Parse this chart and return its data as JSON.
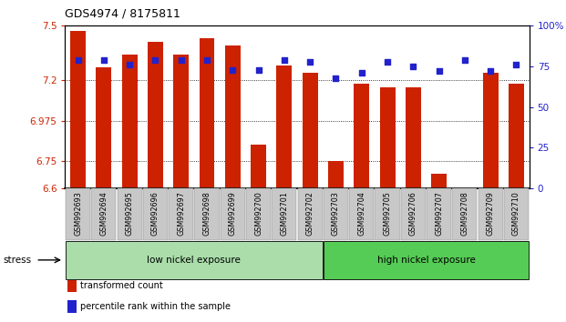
{
  "title": "GDS4974 / 8175811",
  "samples": [
    "GSM992693",
    "GSM992694",
    "GSM992695",
    "GSM992696",
    "GSM992697",
    "GSM992698",
    "GSM992699",
    "GSM992700",
    "GSM992701",
    "GSM992702",
    "GSM992703",
    "GSM992704",
    "GSM992705",
    "GSM992706",
    "GSM992707",
    "GSM992708",
    "GSM992709",
    "GSM992710"
  ],
  "bar_values": [
    7.47,
    7.27,
    7.34,
    7.41,
    7.34,
    7.43,
    7.39,
    6.84,
    7.28,
    7.24,
    6.75,
    7.18,
    7.16,
    7.16,
    6.68,
    6.6,
    7.24,
    7.18
  ],
  "dot_values": [
    79,
    79,
    76,
    79,
    79,
    79,
    73,
    73,
    79,
    78,
    68,
    71,
    78,
    75,
    72,
    79,
    72,
    76
  ],
  "ylim_left": [
    6.6,
    7.5
  ],
  "ylim_right": [
    0,
    100
  ],
  "yticks_left": [
    6.6,
    6.75,
    6.975,
    7.2,
    7.5
  ],
  "ytick_labels_left": [
    "6.6",
    "6.75",
    "6.975",
    "7.2",
    "7.5"
  ],
  "yticks_right": [
    0,
    25,
    50,
    75,
    100
  ],
  "ytick_labels_right": [
    "0",
    "25",
    "50",
    "75",
    "100%"
  ],
  "bar_color": "#CC2200",
  "dot_color": "#2222CC",
  "low_nickel_label": "low nickel exposure",
  "high_nickel_label": "high nickel exposure",
  "low_nickel_color": "#AADDAA",
  "high_nickel_color": "#55CC55",
  "stress_label": "stress",
  "low_nickel_count": 10,
  "high_nickel_count": 8,
  "legend_bar_label": "transformed count",
  "legend_dot_label": "percentile rank within the sample",
  "bar_bottom": 6.6,
  "figwidth": 6.21,
  "figheight": 3.54
}
